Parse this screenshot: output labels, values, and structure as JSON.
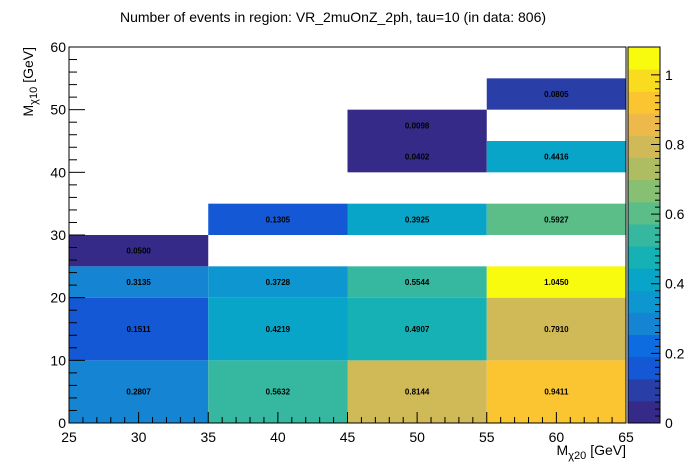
{
  "chart_data": {
    "type": "heatmap",
    "title": "Number of events in region: VR_2muOnZ_2ph, tau=10 (in data: 806)",
    "xlabel_main": "M",
    "xlabel_sub": "χ20",
    "xlabel_unit": "[GeV]",
    "ylabel_main": "M",
    "ylabel_sub": "χ10",
    "ylabel_unit": "[GeV]",
    "xlim": [
      25,
      65
    ],
    "ylim": [
      0,
      60
    ],
    "zlim": [
      0,
      1.08
    ],
    "x_ticks": [
      "25",
      "30",
      "35",
      "40",
      "45",
      "50",
      "55",
      "60",
      "65"
    ],
    "y_ticks": [
      "0",
      "10",
      "20",
      "30",
      "40",
      "50",
      "60"
    ],
    "z_ticks": [
      "0",
      "0.2",
      "0.4",
      "0.6",
      "0.8",
      "1"
    ],
    "cells": [
      {
        "x0": 25,
        "x1": 35,
        "y0": 0,
        "y1": 10,
        "value": 0.2807,
        "label": "0.2807"
      },
      {
        "x0": 35,
        "x1": 45,
        "y0": 0,
        "y1": 10,
        "value": 0.5632,
        "label": "0.5632"
      },
      {
        "x0": 45,
        "x1": 55,
        "y0": 0,
        "y1": 10,
        "value": 0.8144,
        "label": "0.8144"
      },
      {
        "x0": 55,
        "x1": 65,
        "y0": 0,
        "y1": 10,
        "value": 0.9411,
        "label": "0.9411"
      },
      {
        "x0": 25,
        "x1": 35,
        "y0": 10,
        "y1": 20,
        "value": 0.1511,
        "label": "0.1511"
      },
      {
        "x0": 35,
        "x1": 45,
        "y0": 10,
        "y1": 20,
        "value": 0.4219,
        "label": "0.4219"
      },
      {
        "x0": 45,
        "x1": 55,
        "y0": 10,
        "y1": 20,
        "value": 0.4907,
        "label": "0.4907"
      },
      {
        "x0": 55,
        "x1": 65,
        "y0": 10,
        "y1": 20,
        "value": 0.791,
        "label": "0.7910"
      },
      {
        "x0": 25,
        "x1": 35,
        "y0": 20,
        "y1": 25,
        "value": 0.3135,
        "label": "0.3135"
      },
      {
        "x0": 35,
        "x1": 45,
        "y0": 20,
        "y1": 25,
        "value": 0.3728,
        "label": "0.3728"
      },
      {
        "x0": 45,
        "x1": 55,
        "y0": 20,
        "y1": 25,
        "value": 0.5544,
        "label": "0.5544"
      },
      {
        "x0": 55,
        "x1": 65,
        "y0": 20,
        "y1": 25,
        "value": 1.045,
        "label": "1.0450"
      },
      {
        "x0": 25,
        "x1": 35,
        "y0": 25,
        "y1": 30,
        "value": 0.05,
        "label": "0.0500"
      },
      {
        "x0": 35,
        "x1": 45,
        "y0": 30,
        "y1": 35,
        "value": 0.1305,
        "label": "0.1305"
      },
      {
        "x0": 45,
        "x1": 55,
        "y0": 30,
        "y1": 35,
        "value": 0.3925,
        "label": "0.3925"
      },
      {
        "x0": 55,
        "x1": 65,
        "y0": 30,
        "y1": 35,
        "value": 0.5927,
        "label": "0.5927"
      },
      {
        "x0": 45,
        "x1": 55,
        "y0": 40,
        "y1": 45,
        "value": 0.0402,
        "label": "0.0402"
      },
      {
        "x0": 55,
        "x1": 65,
        "y0": 40,
        "y1": 45,
        "value": 0.4416,
        "label": "0.4416"
      },
      {
        "x0": 45,
        "x1": 55,
        "y0": 45,
        "y1": 50,
        "value": 0.0098,
        "label": "0.0098"
      },
      {
        "x0": 55,
        "x1": 65,
        "y0": 50,
        "y1": 55,
        "value": 0.0805,
        "label": "0.0805"
      }
    ],
    "colormap": [
      "#352a87",
      "#2a3ea8",
      "#1458d6",
      "#0d6de0",
      "#1584d2",
      "#0d96d0",
      "#08a5c8",
      "#15b1b4",
      "#35b89f",
      "#5bbd87",
      "#87bf73",
      "#aebd62",
      "#d0ba57",
      "#ecb94a",
      "#fbc431",
      "#f9dc1f",
      "#f9fb0e"
    ],
    "grid": false
  }
}
